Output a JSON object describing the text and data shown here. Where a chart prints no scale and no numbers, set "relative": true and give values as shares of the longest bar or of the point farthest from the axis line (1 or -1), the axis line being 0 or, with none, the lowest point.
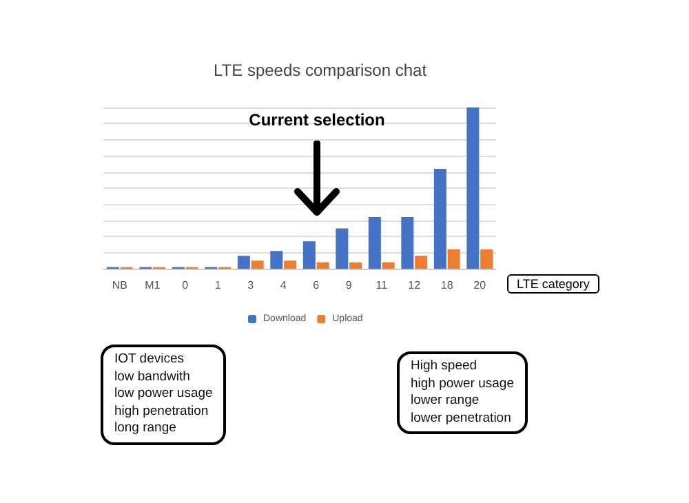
{
  "chart_data": {
    "type": "bar",
    "title": "LTE speeds comparison chat",
    "xlabel": "LTE category",
    "relative": true,
    "grid": true,
    "legend": "bottom",
    "categories": [
      "NB",
      "M1",
      "0",
      "1",
      "3",
      "4",
      "6",
      "9",
      "11",
      "12",
      "18",
      "20"
    ],
    "series": [
      {
        "name": "Download",
        "color": "#4472c4",
        "values": [
          0.01,
          0.01,
          0.01,
          0.01,
          0.08,
          0.11,
          0.17,
          0.25,
          0.32,
          0.32,
          0.62,
          1.0
        ]
      },
      {
        "name": "Upload",
        "color": "#ed7d31",
        "values": [
          0.01,
          0.01,
          0.01,
          0.01,
          0.05,
          0.05,
          0.04,
          0.04,
          0.04,
          0.08,
          0.12,
          0.12
        ]
      }
    ],
    "annotations": [
      "Current selection",
      "IOT devices\nlow bandwith\nlow power usage\nhigh penetration\nlong range",
      "High speed\nhigh power usage\nlower range\nlower penetration"
    ]
  }
}
